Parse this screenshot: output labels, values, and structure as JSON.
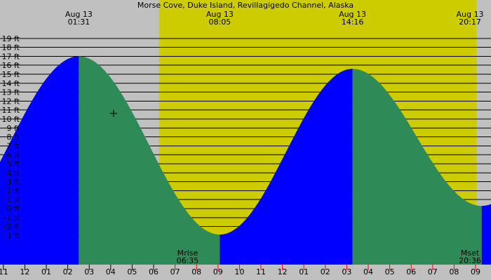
{
  "chart_data": {
    "type": "area",
    "title": "Morse Cove, Duke Island, Revillagigedo Channel, Alaska",
    "ylim": [
      -3.5,
      19.5
    ],
    "xlim_hours": [
      -3.0,
      30.2
    ],
    "y_ticks": [
      19,
      18,
      17,
      16,
      15,
      14,
      13,
      12,
      11,
      10,
      9,
      8,
      7,
      6,
      5,
      4,
      3,
      2,
      1,
      0,
      -1,
      -2,
      -3
    ],
    "y_tick_labels": [
      "19 ft",
      "18 ft",
      "17 ft",
      "16 ft",
      "15 ft",
      "14 ft",
      "13 ft",
      "12 ft",
      "11 ft",
      "10 ft",
      "9 ft",
      "8 ft",
      "7 ft",
      "6 ft",
      "5 ft",
      "4 ft",
      "3 ft",
      "2 ft",
      "1 ft",
      "0 ft",
      "-1 ft",
      "-2 ft",
      "-3 ft"
    ],
    "x_ticks": [
      {
        "h": -2,
        "label": "11"
      },
      {
        "h": -1,
        "label": "12"
      },
      {
        "h": 0,
        "label": "01"
      },
      {
        "h": 1,
        "label": "02"
      },
      {
        "h": 2,
        "label": "03"
      },
      {
        "h": 3,
        "label": "04"
      },
      {
        "h": 4,
        "label": "05"
      },
      {
        "h": 5,
        "label": "06"
      },
      {
        "h": 6,
        "label": "07"
      },
      {
        "h": 7,
        "label": "08"
      },
      {
        "h": 8,
        "label": "09"
      },
      {
        "h": 9,
        "label": "10"
      },
      {
        "h": 10,
        "label": "11"
      },
      {
        "h": 11,
        "label": "12"
      },
      {
        "h": 12,
        "label": "01"
      },
      {
        "h": 13,
        "label": "02"
      },
      {
        "h": 14,
        "label": "03"
      },
      {
        "h": 15,
        "label": "04"
      },
      {
        "h": 16,
        "label": "05"
      },
      {
        "h": 17,
        "label": "06"
      },
      {
        "h": 18,
        "label": "07"
      },
      {
        "h": 19,
        "label": "08"
      },
      {
        "h": 20,
        "label": "09"
      }
    ],
    "extremes": [
      {
        "h": 1.517,
        "height": 17.0,
        "type": "high",
        "date": "Aug 13",
        "time": "01:31"
      },
      {
        "h": 8.083,
        "height": -2.9,
        "type": "low",
        "date": "Aug 13",
        "time": "08:05"
      },
      {
        "h": 14.267,
        "height": 15.6,
        "type": "high",
        "date": "Aug 13",
        "time": "14:16"
      },
      {
        "h": 20.283,
        "height": 0.3,
        "type": "low",
        "date": "Aug 13",
        "time": "20:17"
      }
    ],
    "daylight": {
      "start_h": 5.25,
      "end_h": 20.05
    },
    "moon": [
      {
        "label": "Mrise",
        "time": "06:35",
        "h": 6.583
      },
      {
        "label": "Mset",
        "time": "20:36",
        "h": 20.6
      }
    ],
    "colors": {
      "night": "#c0c0c0",
      "day": "#cccc00",
      "rising": "#0000ff",
      "falling": "#2e8b57",
      "grid": "#000000",
      "tick_day": "#ff0000"
    }
  }
}
